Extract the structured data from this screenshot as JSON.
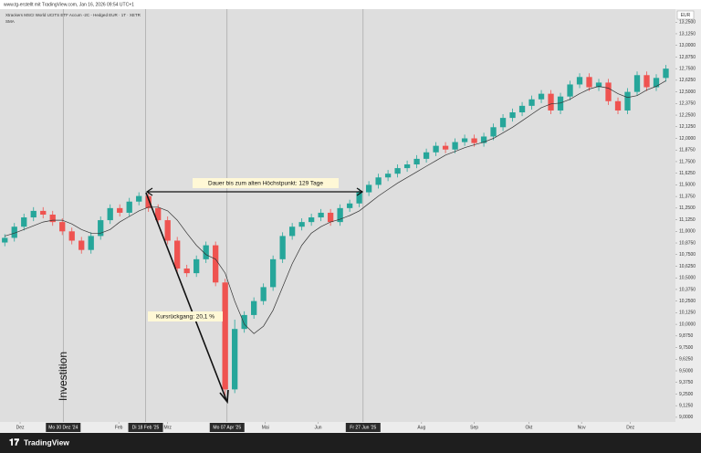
{
  "header": {
    "watermark": "www.tg-erstellt mit TradingView.com, Jan 16, 2026 09:54 UTC+1",
    "symbol": "Xtrackers MSCI World UCITS ETF Accum -2C - Hedged EUR · 1T · XETR",
    "indicator": "SMA",
    "currency": "EUR",
    "logo": "TradingView"
  },
  "annotations": {
    "duration": "Dauer bis zum alten Höchstpunkt: 129 Tage",
    "drawdown": "Kursrückgang: 20,1 %",
    "investment": "Investition"
  },
  "chart_data": {
    "type": "candlestick",
    "up_color": "#26a69a",
    "down_color": "#ef5350",
    "sma_color": "#333333",
    "categories": [
      null,
      null,
      null,
      null,
      null,
      null,
      null,
      null,
      null,
      null,
      null,
      null,
      null,
      null,
      null,
      null,
      null,
      null,
      null,
      null,
      null,
      null,
      null,
      null,
      null,
      null,
      null,
      null,
      null,
      null,
      null,
      null,
      null,
      null,
      null,
      null,
      null,
      null,
      null,
      null,
      null,
      null,
      null,
      null,
      null,
      null,
      null,
      null,
      null,
      null,
      null,
      null,
      null,
      null,
      null,
      null,
      null,
      null,
      null,
      null,
      null,
      null,
      null,
      null,
      null,
      null,
      null,
      null,
      null,
      null
    ],
    "open": [
      10.88,
      10.93,
      11.05,
      11.15,
      11.22,
      11.18,
      11.1,
      11.0,
      10.9,
      10.8,
      10.95,
      11.12,
      11.25,
      11.2,
      11.32,
      11.38,
      11.25,
      11.12,
      10.9,
      10.6,
      10.55,
      10.7,
      10.85,
      10.45,
      9.3,
      9.95,
      10.1,
      10.25,
      10.4,
      10.7,
      10.95,
      11.05,
      11.1,
      11.15,
      11.2,
      11.1,
      11.25,
      11.3,
      11.42,
      11.5,
      11.58,
      11.62,
      11.68,
      11.72,
      11.78,
      11.85,
      11.92,
      11.88,
      11.96,
      12.0,
      11.95,
      12.02,
      12.12,
      12.22,
      12.28,
      12.35,
      12.42,
      12.48,
      12.3,
      12.45,
      12.58,
      12.66,
      12.55,
      12.6,
      12.4,
      12.3,
      12.5,
      12.68,
      12.55,
      12.65
    ],
    "high": [
      10.97,
      11.09,
      11.19,
      11.26,
      11.26,
      11.22,
      11.14,
      11.04,
      10.94,
      10.99,
      11.16,
      11.29,
      11.29,
      11.36,
      11.42,
      11.42,
      11.29,
      11.16,
      10.94,
      10.64,
      10.74,
      10.89,
      10.89,
      10.49,
      10.05,
      10.14,
      10.29,
      10.44,
      10.74,
      10.99,
      11.09,
      11.14,
      11.19,
      11.24,
      11.24,
      11.29,
      11.34,
      11.46,
      11.54,
      11.62,
      11.66,
      11.72,
      11.76,
      11.82,
      11.89,
      11.96,
      11.96,
      12.0,
      12.04,
      12.04,
      12.06,
      12.16,
      12.26,
      12.32,
      12.39,
      12.46,
      12.52,
      12.52,
      12.49,
      12.62,
      12.7,
      12.7,
      12.64,
      12.64,
      12.44,
      12.54,
      12.72,
      12.72,
      12.69,
      12.79
    ],
    "low": [
      10.84,
      10.89,
      11.01,
      11.11,
      11.14,
      11.06,
      10.96,
      10.86,
      10.76,
      10.76,
      10.91,
      11.08,
      11.16,
      11.16,
      11.28,
      11.21,
      11.08,
      10.86,
      10.56,
      10.51,
      10.51,
      10.66,
      10.41,
      9.22,
      9.26,
      9.91,
      10.06,
      10.21,
      10.36,
      10.66,
      10.91,
      11.01,
      11.06,
      11.11,
      11.06,
      11.06,
      11.21,
      11.26,
      11.38,
      11.46,
      11.54,
      11.58,
      11.64,
      11.68,
      11.74,
      11.81,
      11.84,
      11.84,
      11.92,
      11.91,
      11.91,
      11.98,
      12.08,
      12.18,
      12.24,
      12.31,
      12.38,
      12.26,
      12.26,
      12.41,
      12.54,
      12.51,
      12.51,
      12.36,
      12.26,
      12.26,
      12.46,
      12.51,
      12.51,
      12.61
    ],
    "close": [
      10.93,
      11.05,
      11.15,
      11.22,
      11.18,
      11.1,
      11.0,
      10.9,
      10.8,
      10.95,
      11.12,
      11.25,
      11.2,
      11.32,
      11.38,
      11.25,
      11.12,
      10.9,
      10.6,
      10.55,
      10.7,
      10.85,
      10.45,
      9.3,
      9.95,
      10.1,
      10.25,
      10.4,
      10.7,
      10.95,
      11.05,
      11.1,
      11.15,
      11.2,
      11.1,
      11.25,
      11.3,
      11.42,
      11.5,
      11.58,
      11.62,
      11.68,
      11.72,
      11.78,
      11.85,
      11.92,
      11.88,
      11.96,
      12.0,
      11.95,
      12.02,
      12.12,
      12.22,
      12.28,
      12.35,
      12.42,
      12.48,
      12.3,
      12.45,
      12.58,
      12.66,
      12.55,
      12.6,
      12.4,
      12.3,
      12.5,
      12.68,
      12.55,
      12.65,
      12.75
    ],
    "sma": [
      10.95,
      10.98,
      11.02,
      11.06,
      11.1,
      11.12,
      11.12,
      11.08,
      11.02,
      10.98,
      10.98,
      11.02,
      11.1,
      11.16,
      11.22,
      11.26,
      11.26,
      11.22,
      11.12,
      10.98,
      10.85,
      10.75,
      10.7,
      10.55,
      10.25,
      10.0,
      9.9,
      9.98,
      10.15,
      10.4,
      10.65,
      10.85,
      10.98,
      11.05,
      11.1,
      11.13,
      11.17,
      11.22,
      11.3,
      11.38,
      11.45,
      11.52,
      11.58,
      11.64,
      11.7,
      11.76,
      11.82,
      11.86,
      11.9,
      11.93,
      11.96,
      12.0,
      12.06,
      12.12,
      12.19,
      12.26,
      12.33,
      12.37,
      12.38,
      12.42,
      12.48,
      12.53,
      12.56,
      12.54,
      12.48,
      12.44,
      12.46,
      12.52,
      12.56,
      12.62
    ],
    "xlim": [
      -0.5,
      70
    ],
    "xticks": [
      {
        "value": 1.6,
        "label": "Dez"
      },
      {
        "value": 6.1,
        "label": "Mo 30 Dez '24"
      },
      {
        "value": 11.9,
        "label": "Feb"
      },
      {
        "value": 14.7,
        "label": "Di 18 Feb '25"
      },
      {
        "value": 17.0,
        "label": "Mrz"
      },
      {
        "value": 23.2,
        "label": "Mo 07 Apr '25"
      },
      {
        "value": 27.2,
        "label": "Mai"
      },
      {
        "value": 32.7,
        "label": "Jun"
      },
      {
        "value": 37.4,
        "label": "Fr 27 Jun '25"
      },
      {
        "value": 43.5,
        "label": "Aug"
      },
      {
        "value": 49.0,
        "label": "Sep"
      },
      {
        "value": 54.7,
        "label": "Okt"
      },
      {
        "value": 60.2,
        "label": "Nov"
      },
      {
        "value": 65.3,
        "label": "Dez"
      }
    ],
    "crosshair_ticks": [
      1,
      3,
      5,
      8
    ],
    "ylim": [
      8.95,
      13.39
    ],
    "yticks": [
      {
        "value": 13.25,
        "label": "13,2500"
      },
      {
        "value": 13.125,
        "label": "13,1250"
      },
      {
        "value": 13.0,
        "label": "13,0000"
      },
      {
        "value": 12.875,
        "label": "12,8750"
      },
      {
        "value": 12.75,
        "label": "12,7500"
      },
      {
        "value": 12.625,
        "label": "12,6250"
      },
      {
        "value": 12.5,
        "label": "12,5000"
      },
      {
        "value": 12.375,
        "label": "12,3750"
      },
      {
        "value": 12.25,
        "label": "12,2500"
      },
      {
        "value": 12.125,
        "label": "12,1250"
      },
      {
        "value": 12.0,
        "label": "12,0000"
      },
      {
        "value": 11.875,
        "label": "11,8750"
      },
      {
        "value": 11.75,
        "label": "11,7500"
      },
      {
        "value": 11.625,
        "label": "11,6250"
      },
      {
        "value": 11.5,
        "label": "11,5000"
      },
      {
        "value": 11.375,
        "label": "11,3750"
      },
      {
        "value": 11.25,
        "label": "11,2500"
      },
      {
        "value": 11.125,
        "label": "11,1250"
      },
      {
        "value": 11.0,
        "label": "11,0000"
      },
      {
        "value": 10.875,
        "label": "10,8750"
      },
      {
        "value": 10.75,
        "label": "10,7500"
      },
      {
        "value": 10.625,
        "label": "10,6250"
      },
      {
        "value": 10.5,
        "label": "10,5000"
      },
      {
        "value": 10.375,
        "label": "10,3750"
      },
      {
        "value": 10.25,
        "label": "10,2500"
      },
      {
        "value": 10.125,
        "label": "10,1250"
      },
      {
        "value": 10.0,
        "label": "10,0000"
      },
      {
        "value": 9.875,
        "label": "9,8750"
      },
      {
        "value": 9.75,
        "label": "9,7500"
      },
      {
        "value": 9.625,
        "label": "9,6250"
      },
      {
        "value": 9.5,
        "label": "9,5000"
      },
      {
        "value": 9.375,
        "label": "9,3750"
      },
      {
        "value": 9.25,
        "label": "9,2500"
      },
      {
        "value": 9.125,
        "label": "9,1250"
      },
      {
        "value": 9.0,
        "label": "9,0000"
      }
    ]
  }
}
